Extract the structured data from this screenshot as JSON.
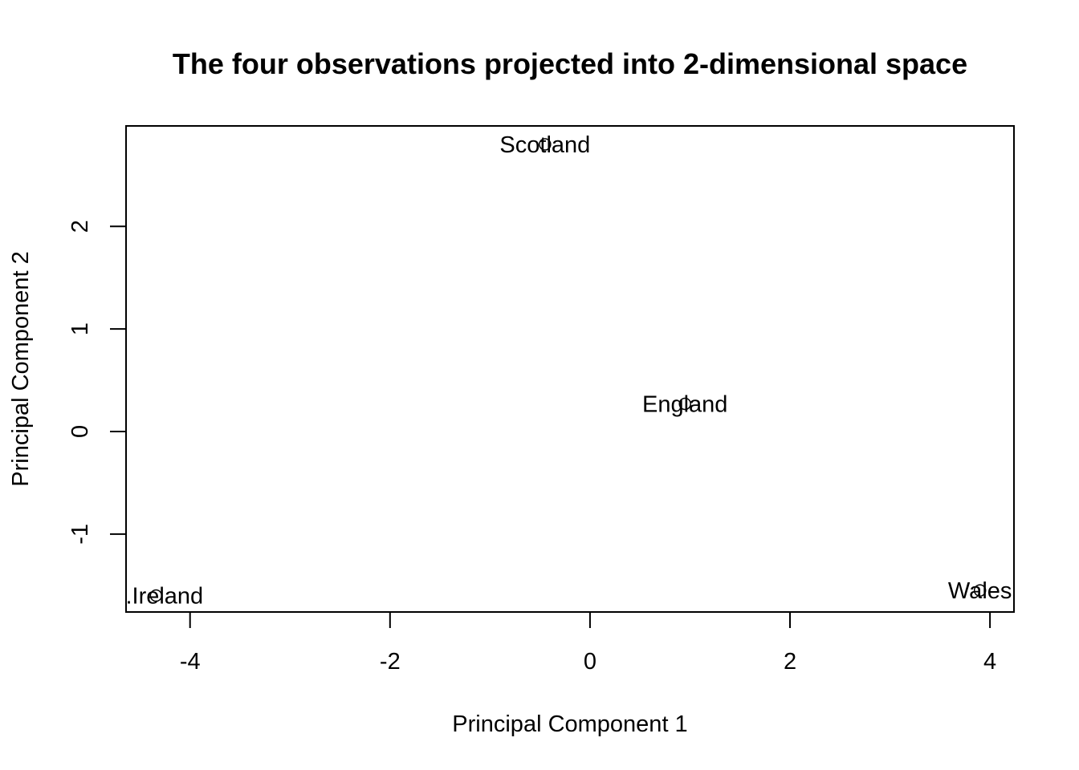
{
  "chart_data": {
    "type": "scatter",
    "title": "The four observations projected into 2-dimensional space",
    "xlabel": "Principal Component 1",
    "ylabel": "Principal Component 2",
    "xlim": [
      -4.64,
      4.24
    ],
    "ylim": [
      -1.76,
      2.98
    ],
    "x_ticks": [
      -4,
      -2,
      0,
      2,
      4
    ],
    "y_ticks": [
      -1,
      0,
      1,
      2
    ],
    "grid": false,
    "legend": "none",
    "marker": "open-circle",
    "points": [
      {
        "label": "England",
        "x": 0.95,
        "y": 0.27
      },
      {
        "label": "Wales",
        "x": 3.9,
        "y": -1.55
      },
      {
        "label": "Scotland",
        "x": -0.45,
        "y": 2.8
      },
      {
        "label": "N.Ireland",
        "x": -4.34,
        "y": -1.6
      }
    ],
    "colors": {
      "points": "#000000",
      "axes": "#000000"
    }
  }
}
